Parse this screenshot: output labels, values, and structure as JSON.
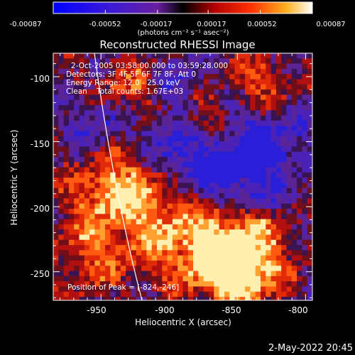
{
  "image": {
    "title": "Reconstructed RHESSI Image",
    "xlabel": "Heliocentric X (arcsec)",
    "ylabel": "Heliocentric Y (arcsec)",
    "x_ticks": [
      "-950",
      "-900",
      "-850",
      "-800"
    ],
    "y_ticks": [
      "-100",
      "-150",
      "-200",
      "-250"
    ],
    "x_tick_values": [
      -950,
      -900,
      -850,
      -800
    ],
    "y_tick_values": [
      -100,
      -150,
      -200,
      -250
    ],
    "xlim": [
      -985,
      -795
    ],
    "ylim": [
      -272,
      -82
    ],
    "info_lines": [
      "2-Oct-2005 03:58:00.000 to 03:59:28.000",
      "Detectors: 3F 4F 5F 6F 7F 8F, Att 0",
      "Energy Range: 12.0 - 25.0 keV",
      "Clean    Total counts: 1.67E+03"
    ],
    "peak_label": "Position of Peak = [-824,-246]",
    "peak": [
      -824,
      -246
    ]
  },
  "colorbar": {
    "ticks": [
      "-0.00087",
      "-0.00052",
      "-0.00017",
      "0.00017",
      "0.00052",
      "0.00087"
    ],
    "unit": "(photons cm⁻² s⁻¹ asec⁻²)",
    "range": [
      -0.00087,
      0.00087
    ]
  },
  "footer": {
    "date": "2-May-2022 20:45"
  },
  "colors": {
    "background": "#000000",
    "axes": "#ffffff",
    "limb": "#ffffff"
  }
}
